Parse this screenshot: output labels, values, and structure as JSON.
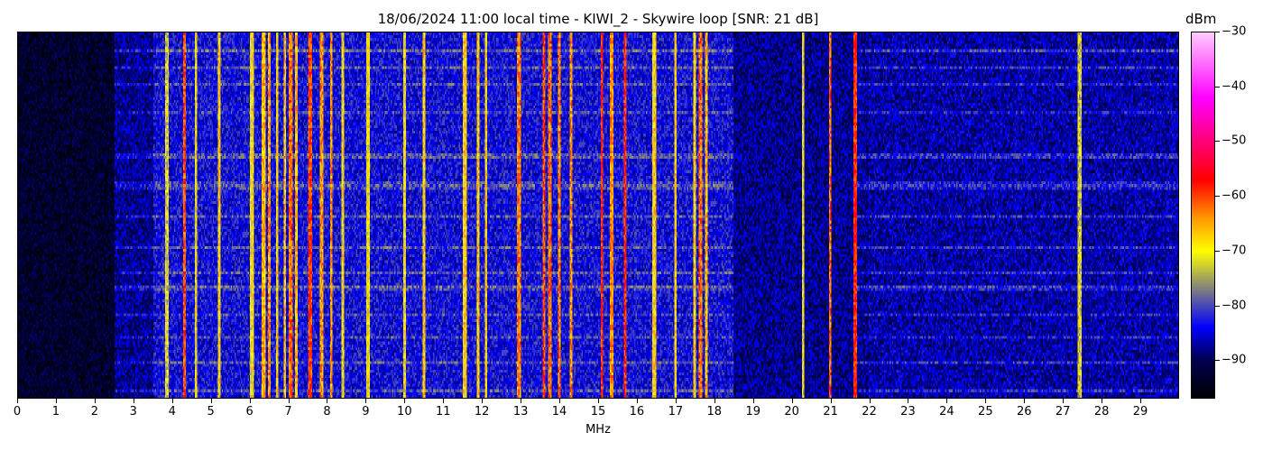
{
  "chart_data": {
    "type": "heatmap",
    "title": "18/06/2024 11:00 local time - KIWI_2 - Skywire loop [SNR: 21 dB]",
    "xlabel": "MHz",
    "xlim": [
      0,
      30
    ],
    "xticks": [
      0,
      1,
      2,
      3,
      4,
      5,
      6,
      7,
      8,
      9,
      10,
      11,
      12,
      13,
      14,
      15,
      16,
      17,
      18,
      19,
      20,
      21,
      22,
      23,
      24,
      25,
      26,
      27,
      28,
      29
    ],
    "colorbar": {
      "label": "dBm",
      "range": [
        -97,
        -30
      ],
      "ticks": [
        -30,
        -40,
        -50,
        -60,
        -70,
        -80,
        -90
      ],
      "colormap": [
        {
          "dBm": -97,
          "color": "#000000"
        },
        {
          "dBm": -90,
          "color": "#000050"
        },
        {
          "dBm": -84,
          "color": "#0000ff"
        },
        {
          "dBm": -77,
          "color": "#808080"
        },
        {
          "dBm": -70,
          "color": "#ffff00"
        },
        {
          "dBm": -64,
          "color": "#ff9900"
        },
        {
          "dBm": -57,
          "color": "#ff0000"
        },
        {
          "dBm": -42,
          "color": "#ff00ff"
        },
        {
          "dBm": -30,
          "color": "#ffccff"
        }
      ]
    },
    "noise_floor": [
      {
        "from_mhz": 0,
        "to_mhz": 2.5,
        "dBm": -93
      },
      {
        "from_mhz": 2.5,
        "to_mhz": 3.5,
        "dBm": -88
      },
      {
        "from_mhz": 3.5,
        "to_mhz": 18.5,
        "dBm": -84
      },
      {
        "from_mhz": 18.5,
        "to_mhz": 22,
        "dBm": -88
      },
      {
        "from_mhz": 22,
        "to_mhz": 30,
        "dBm": -87
      }
    ],
    "signals": [
      {
        "mhz": 3.85,
        "dBm": -72
      },
      {
        "mhz": 4.3,
        "dBm": -60
      },
      {
        "mhz": 4.6,
        "dBm": -70
      },
      {
        "mhz": 5.2,
        "dBm": -68
      },
      {
        "mhz": 6.05,
        "dBm": -70
      },
      {
        "mhz": 6.35,
        "dBm": -66
      },
      {
        "mhz": 6.5,
        "dBm": -64
      },
      {
        "mhz": 6.7,
        "dBm": -68
      },
      {
        "mhz": 6.9,
        "dBm": -66
      },
      {
        "mhz": 7.05,
        "dBm": -62
      },
      {
        "mhz": 7.2,
        "dBm": -66
      },
      {
        "mhz": 7.55,
        "dBm": -60
      },
      {
        "mhz": 7.85,
        "dBm": -64
      },
      {
        "mhz": 8.1,
        "dBm": -64
      },
      {
        "mhz": 8.4,
        "dBm": -70
      },
      {
        "mhz": 9.05,
        "dBm": -70
      },
      {
        "mhz": 10.0,
        "dBm": -70
      },
      {
        "mhz": 10.5,
        "dBm": -68
      },
      {
        "mhz": 11.55,
        "dBm": -68
      },
      {
        "mhz": 11.9,
        "dBm": -68
      },
      {
        "mhz": 12.1,
        "dBm": -68
      },
      {
        "mhz": 12.95,
        "dBm": -63
      },
      {
        "mhz": 13.6,
        "dBm": -60
      },
      {
        "mhz": 13.75,
        "dBm": -62
      },
      {
        "mhz": 14.0,
        "dBm": -63
      },
      {
        "mhz": 14.3,
        "dBm": -64
      },
      {
        "mhz": 15.1,
        "dBm": -58
      },
      {
        "mhz": 15.35,
        "dBm": -64
      },
      {
        "mhz": 15.7,
        "dBm": -58
      },
      {
        "mhz": 16.45,
        "dBm": -68
      },
      {
        "mhz": 17.0,
        "dBm": -68
      },
      {
        "mhz": 17.5,
        "dBm": -68
      },
      {
        "mhz": 17.65,
        "dBm": -62
      },
      {
        "mhz": 17.8,
        "dBm": -66
      },
      {
        "mhz": 20.3,
        "dBm": -70
      },
      {
        "mhz": 21.0,
        "dBm": -62
      },
      {
        "mhz": 21.65,
        "dBm": -58
      },
      {
        "mhz": 27.45,
        "dBm": -72
      }
    ]
  }
}
